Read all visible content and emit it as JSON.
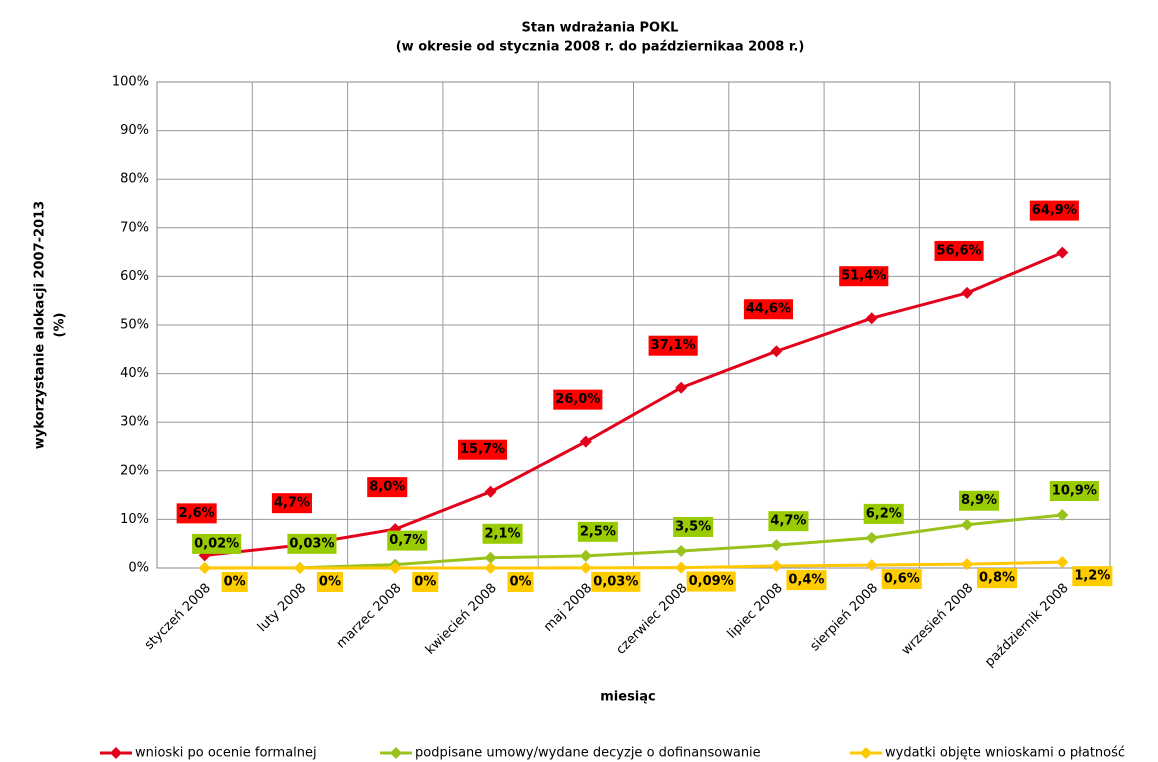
{
  "chart_data": {
    "type": "line",
    "title": [
      "Stan wdrażania POKL",
      "(w okresie od stycznia 2008 r. do październikaa 2008 r.)"
    ],
    "xlabel": "miesiąc",
    "ylabel": [
      "wykorzystanie alokacji 2007-2013",
      "(%)"
    ],
    "categories": [
      "styczeń 2008",
      "luty 2008",
      "marzec 2008",
      "kwiecień 2008",
      "maj 2008",
      "czerwiec 2008",
      "lipiec 2008",
      "sierpień 2008",
      "wrzesień 2008",
      "październik 2008"
    ],
    "series": [
      {
        "name": "wnioski po ocenie formalnej",
        "color": "#e3001b",
        "label_color": "#ff0000",
        "values": [
          2.6,
          4.7,
          8.0,
          15.7,
          26.0,
          37.1,
          44.6,
          51.4,
          56.6,
          64.9
        ],
        "value_labels": [
          "2,6%",
          "4,7%",
          "8,0%",
          "15,7%",
          "26,0%",
          "37,1%",
          "44,6%",
          "51,4%",
          "56,6%",
          "64,9%"
        ]
      },
      {
        "name": "podpisane umowy/wydane decyzje o dofinansowanie",
        "color": "#99c31c",
        "label_color": "#99cc00",
        "values": [
          0.02,
          0.03,
          0.7,
          2.1,
          2.5,
          3.5,
          4.7,
          6.2,
          8.9,
          10.9
        ],
        "value_labels": [
          "0,02%",
          "0,03%",
          "0,7%",
          "2,1%",
          "2,5%",
          "3,5%",
          "4,7%",
          "6,2%",
          "8,9%",
          "10,9%"
        ]
      },
      {
        "name": "wydatki objęte wnioskami o płatność",
        "color": "#ffc800",
        "label_color": "#ffcc00",
        "values": [
          0,
          0,
          0,
          0,
          0.03,
          0.09,
          0.4,
          0.6,
          0.8,
          1.2
        ],
        "value_labels": [
          "0%",
          "0%",
          "0%",
          "0%",
          "0,03%",
          "0,09%",
          "0,4%",
          "0,6%",
          "0,8%",
          "1,2%"
        ]
      }
    ],
    "ylim": [
      0,
      100
    ],
    "yticks": [
      {
        "value": 0,
        "label": "0%"
      },
      {
        "value": 10,
        "label": "10%"
      },
      {
        "value": 20,
        "label": "20%"
      },
      {
        "value": 30,
        "label": "30%"
      },
      {
        "value": 40,
        "label": "40%"
      },
      {
        "value": 50,
        "label": "50%"
      },
      {
        "value": 60,
        "label": "60%"
      },
      {
        "value": 70,
        "label": "70%"
      },
      {
        "value": 80,
        "label": "80%"
      },
      {
        "value": 90,
        "label": "90%"
      },
      {
        "value": 100,
        "label": "100%"
      }
    ],
    "grid": true,
    "legend": "bottom"
  }
}
